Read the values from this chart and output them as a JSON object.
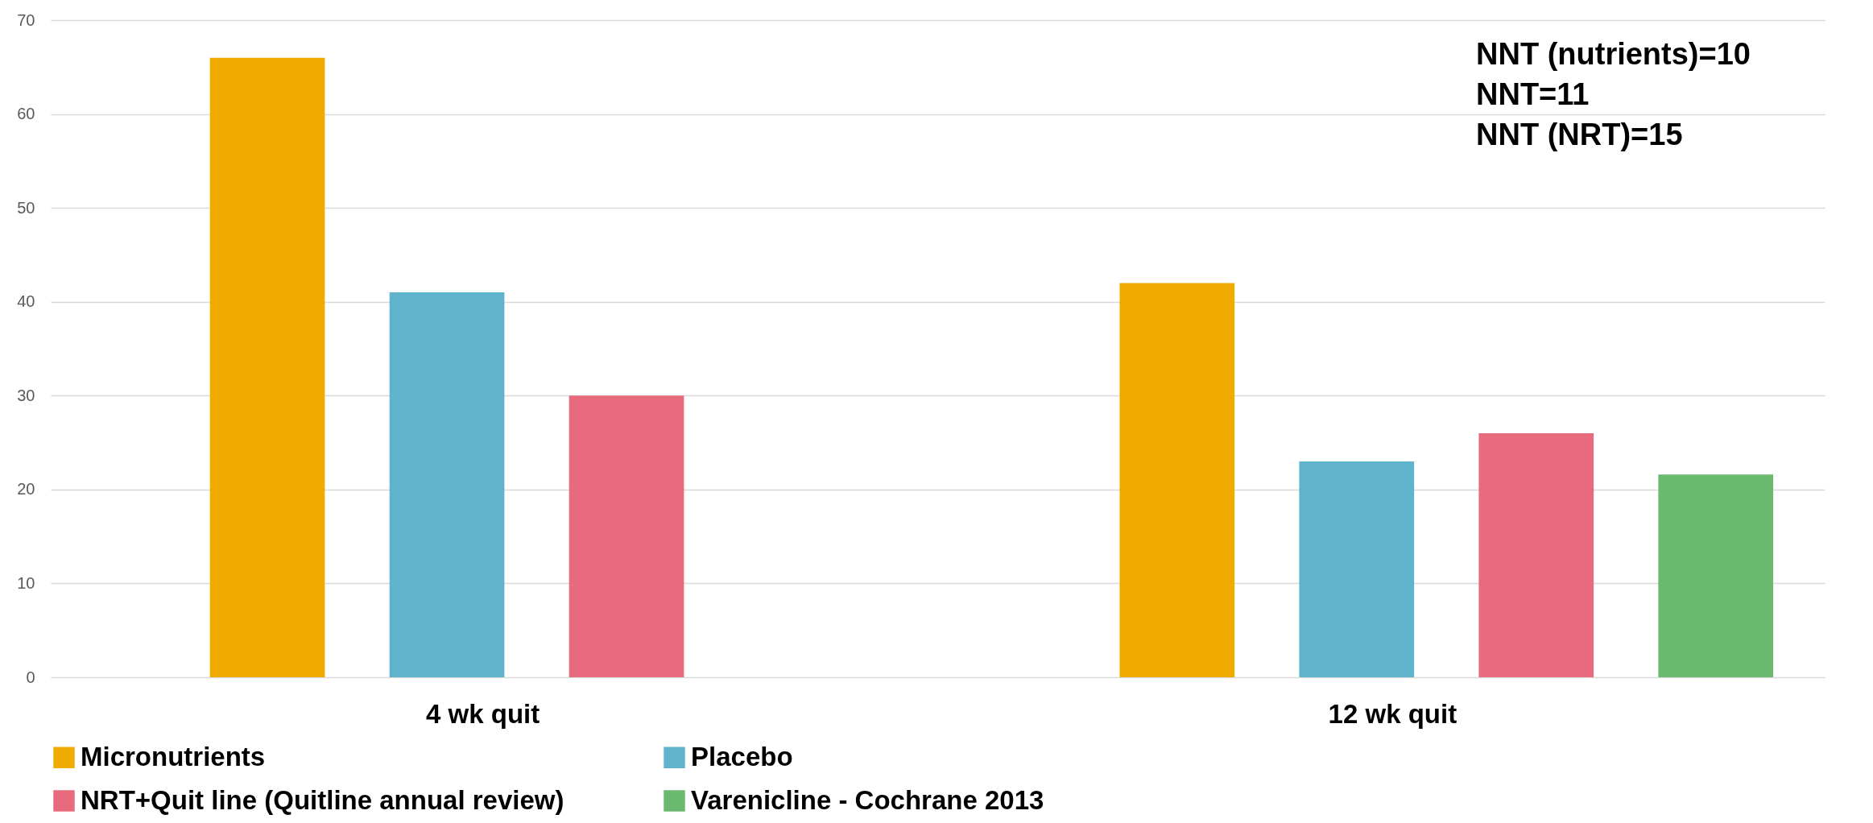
{
  "chart_data": {
    "type": "bar",
    "categories": [
      "4 wk quit",
      "12 wk quit"
    ],
    "series": [
      {
        "name": "Micronutrients",
        "color": "#f0ab00",
        "values": [
          66,
          42
        ]
      },
      {
        "name": "Placebo",
        "color": "#5fb3cc",
        "values": [
          41,
          23
        ]
      },
      {
        "name": "NRT+Quit line (Quitline annual review)",
        "color": "#e76b7c",
        "values": [
          30,
          26
        ]
      },
      {
        "name": "Varenicline - Cochrane 2013",
        "color": "#6bb86f",
        "values": [
          null,
          21.6
        ]
      }
    ],
    "ylim": [
      0,
      70
    ],
    "yticks": [
      0,
      10,
      20,
      30,
      40,
      50,
      60,
      70
    ],
    "grid": "y",
    "legend": "bottom",
    "annotations": [
      "NNT (nutrients)=10",
      "NNT=11",
      "NNT (NRT)=15"
    ]
  }
}
